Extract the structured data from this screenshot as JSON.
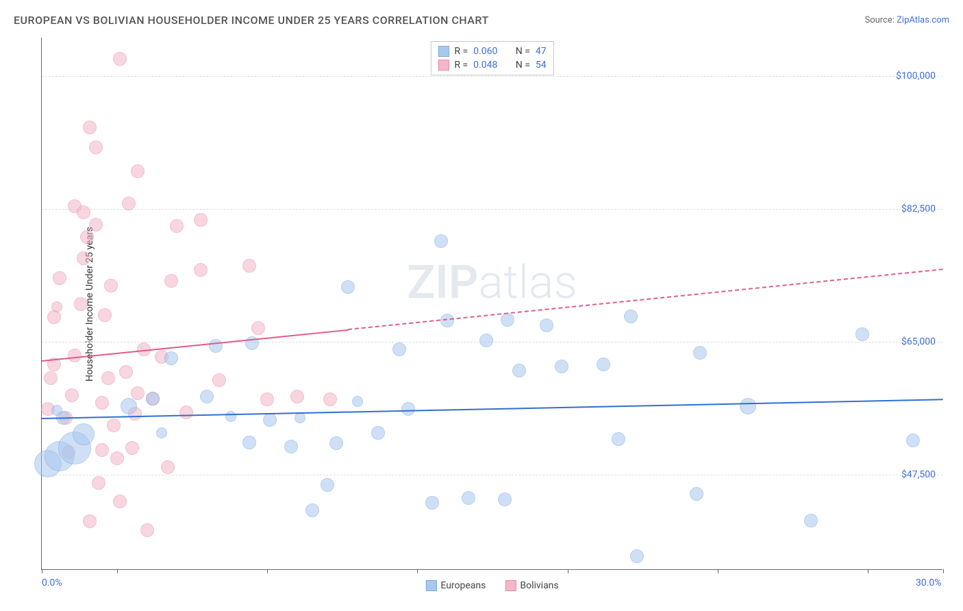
{
  "header": {
    "title": "EUROPEAN VS BOLIVIAN HOUSEHOLDER INCOME UNDER 25 YEARS CORRELATION CHART",
    "source_prefix": "Source: ",
    "source_name": "ZipAtlas.com"
  },
  "watermark": {
    "part1": "ZIP",
    "part2": "atlas"
  },
  "chart": {
    "type": "scatter",
    "background_color": "#ffffff",
    "grid_color": "#dddddd",
    "axis_color": "#666666",
    "yaxis_title": "Householder Income Under 25 years",
    "xlim": [
      0.0,
      30.0
    ],
    "ylim": [
      35000,
      105000
    ],
    "xticks": [
      0.0,
      2.5,
      7.5,
      12.5,
      17.5,
      22.5,
      27.5,
      30.0
    ],
    "xtick_labels_shown": {
      "0.0": "0.0%",
      "30.0": "30.0%"
    },
    "yticks": [
      47500,
      65000,
      82500,
      100000
    ],
    "ytick_labels": [
      "$47,500",
      "$65,000",
      "$82,500",
      "$100,000"
    ],
    "label_fontsize": 14,
    "label_color": "#3f6fd6",
    "series": [
      {
        "name": "Europeans",
        "fill_color": "#a9c8ef",
        "stroke_color": "#7aa8e0",
        "fill_opacity": 0.55,
        "trend": {
          "y_start": 55000,
          "y_end": 57500,
          "x_start": 0.0,
          "x_end": 30.0,
          "color": "#2f6fd0",
          "width": 2,
          "dash": "none"
        },
        "stats": {
          "R": "0.060",
          "N": "47"
        },
        "points": [
          {
            "x": 0.2,
            "y": 49000,
            "r": 20
          },
          {
            "x": 0.6,
            "y": 50000,
            "r": 22
          },
          {
            "x": 1.1,
            "y": 51000,
            "r": 24
          },
          {
            "x": 1.4,
            "y": 52800,
            "r": 16
          },
          {
            "x": 0.7,
            "y": 55000,
            "r": 10
          },
          {
            "x": 0.5,
            "y": 56000,
            "r": 8
          },
          {
            "x": 2.9,
            "y": 56500,
            "r": 12
          },
          {
            "x": 4.0,
            "y": 53000,
            "r": 8
          },
          {
            "x": 3.7,
            "y": 57500,
            "r": 10
          },
          {
            "x": 4.3,
            "y": 62800,
            "r": 10
          },
          {
            "x": 5.5,
            "y": 57800,
            "r": 10
          },
          {
            "x": 5.8,
            "y": 64500,
            "r": 10
          },
          {
            "x": 6.3,
            "y": 55200,
            "r": 8
          },
          {
            "x": 7.0,
            "y": 64800,
            "r": 10
          },
          {
            "x": 6.9,
            "y": 51800,
            "r": 10
          },
          {
            "x": 7.6,
            "y": 54700,
            "r": 10
          },
          {
            "x": 8.3,
            "y": 51200,
            "r": 10
          },
          {
            "x": 8.6,
            "y": 55000,
            "r": 8
          },
          {
            "x": 9.0,
            "y": 42800,
            "r": 10
          },
          {
            "x": 9.5,
            "y": 46200,
            "r": 10
          },
          {
            "x": 9.8,
            "y": 51700,
            "r": 10
          },
          {
            "x": 10.5,
            "y": 57200,
            "r": 8
          },
          {
            "x": 10.2,
            "y": 72200,
            "r": 10
          },
          {
            "x": 11.2,
            "y": 53000,
            "r": 10
          },
          {
            "x": 11.9,
            "y": 64000,
            "r": 10
          },
          {
            "x": 12.2,
            "y": 56200,
            "r": 10
          },
          {
            "x": 13.0,
            "y": 43800,
            "r": 10
          },
          {
            "x": 13.3,
            "y": 78200,
            "r": 10
          },
          {
            "x": 13.5,
            "y": 67800,
            "r": 10
          },
          {
            "x": 14.2,
            "y": 44500,
            "r": 10
          },
          {
            "x": 14.8,
            "y": 65200,
            "r": 10
          },
          {
            "x": 15.4,
            "y": 44300,
            "r": 10
          },
          {
            "x": 15.5,
            "y": 67900,
            "r": 10
          },
          {
            "x": 15.9,
            "y": 61200,
            "r": 10
          },
          {
            "x": 16.8,
            "y": 67200,
            "r": 10
          },
          {
            "x": 17.3,
            "y": 61800,
            "r": 10
          },
          {
            "x": 18.7,
            "y": 62000,
            "r": 10
          },
          {
            "x": 19.2,
            "y": 52200,
            "r": 10
          },
          {
            "x": 19.6,
            "y": 68300,
            "r": 10
          },
          {
            "x": 19.8,
            "y": 36800,
            "r": 10
          },
          {
            "x": 21.8,
            "y": 45000,
            "r": 10
          },
          {
            "x": 21.9,
            "y": 63600,
            "r": 10
          },
          {
            "x": 23.5,
            "y": 56500,
            "r": 12
          },
          {
            "x": 25.6,
            "y": 41500,
            "r": 10
          },
          {
            "x": 27.3,
            "y": 66000,
            "r": 10
          },
          {
            "x": 29.0,
            "y": 52000,
            "r": 10
          }
        ]
      },
      {
        "name": "Bolivians",
        "fill_color": "#f4b6c8",
        "stroke_color": "#e88aa6",
        "fill_opacity": 0.55,
        "trend": {
          "y_start": 62600,
          "y_end": 74600,
          "x_start": 0.0,
          "x_end": 30.0,
          "color": "#e05a86",
          "width": 2,
          "dash": "solid_then_dash",
          "solid_until_x": 10.2
        },
        "stats": {
          "R": "0.048",
          "N": "54"
        },
        "points": [
          {
            "x": 0.2,
            "y": 56200,
            "r": 10
          },
          {
            "x": 0.3,
            "y": 60200,
            "r": 10
          },
          {
            "x": 0.4,
            "y": 62000,
            "r": 10
          },
          {
            "x": 0.4,
            "y": 68200,
            "r": 10
          },
          {
            "x": 0.5,
            "y": 69600,
            "r": 8
          },
          {
            "x": 0.6,
            "y": 73400,
            "r": 10
          },
          {
            "x": 0.8,
            "y": 55000,
            "r": 10
          },
          {
            "x": 0.9,
            "y": 50500,
            "r": 10
          },
          {
            "x": 1.0,
            "y": 58000,
            "r": 10
          },
          {
            "x": 1.1,
            "y": 63200,
            "r": 10
          },
          {
            "x": 1.1,
            "y": 82800,
            "r": 10
          },
          {
            "x": 1.3,
            "y": 70000,
            "r": 10
          },
          {
            "x": 1.4,
            "y": 82000,
            "r": 10
          },
          {
            "x": 1.4,
            "y": 76000,
            "r": 10
          },
          {
            "x": 1.5,
            "y": 78800,
            "r": 10
          },
          {
            "x": 1.6,
            "y": 93200,
            "r": 10
          },
          {
            "x": 1.6,
            "y": 41400,
            "r": 10
          },
          {
            "x": 1.8,
            "y": 80400,
            "r": 10
          },
          {
            "x": 1.8,
            "y": 90600,
            "r": 10
          },
          {
            "x": 1.9,
            "y": 46400,
            "r": 10
          },
          {
            "x": 2.0,
            "y": 50800,
            "r": 10
          },
          {
            "x": 2.0,
            "y": 57000,
            "r": 10
          },
          {
            "x": 2.1,
            "y": 68500,
            "r": 10
          },
          {
            "x": 2.2,
            "y": 60200,
            "r": 10
          },
          {
            "x": 2.3,
            "y": 72400,
            "r": 10
          },
          {
            "x": 2.4,
            "y": 54000,
            "r": 10
          },
          {
            "x": 2.5,
            "y": 49700,
            "r": 10
          },
          {
            "x": 2.6,
            "y": 44000,
            "r": 10
          },
          {
            "x": 2.6,
            "y": 102200,
            "r": 10
          },
          {
            "x": 2.8,
            "y": 61000,
            "r": 10
          },
          {
            "x": 2.9,
            "y": 83200,
            "r": 10
          },
          {
            "x": 3.0,
            "y": 51000,
            "r": 10
          },
          {
            "x": 3.1,
            "y": 55500,
            "r": 10
          },
          {
            "x": 3.2,
            "y": 58200,
            "r": 10
          },
          {
            "x": 3.2,
            "y": 87400,
            "r": 10
          },
          {
            "x": 3.4,
            "y": 64000,
            "r": 10
          },
          {
            "x": 3.5,
            "y": 40200,
            "r": 10
          },
          {
            "x": 3.7,
            "y": 57500,
            "r": 10
          },
          {
            "x": 4.0,
            "y": 63000,
            "r": 10
          },
          {
            "x": 4.2,
            "y": 48500,
            "r": 10
          },
          {
            "x": 4.3,
            "y": 73000,
            "r": 10
          },
          {
            "x": 4.5,
            "y": 80200,
            "r": 10
          },
          {
            "x": 4.8,
            "y": 55700,
            "r": 10
          },
          {
            "x": 5.3,
            "y": 74500,
            "r": 10
          },
          {
            "x": 5.3,
            "y": 81000,
            "r": 10
          },
          {
            "x": 5.9,
            "y": 60000,
            "r": 10
          },
          {
            "x": 6.9,
            "y": 75000,
            "r": 10
          },
          {
            "x": 7.2,
            "y": 66800,
            "r": 10
          },
          {
            "x": 7.5,
            "y": 57400,
            "r": 10
          },
          {
            "x": 8.5,
            "y": 57800,
            "r": 10
          },
          {
            "x": 9.6,
            "y": 57400,
            "r": 10
          }
        ]
      }
    ],
    "legend_bottom": [
      {
        "label": "Europeans",
        "fill": "#a9c8ef",
        "stroke": "#7aa8e0"
      },
      {
        "label": "Bolivians",
        "fill": "#f4b6c8",
        "stroke": "#e88aa6"
      }
    ],
    "legend_stats_labels": {
      "R": "R =",
      "N": "N ="
    }
  }
}
